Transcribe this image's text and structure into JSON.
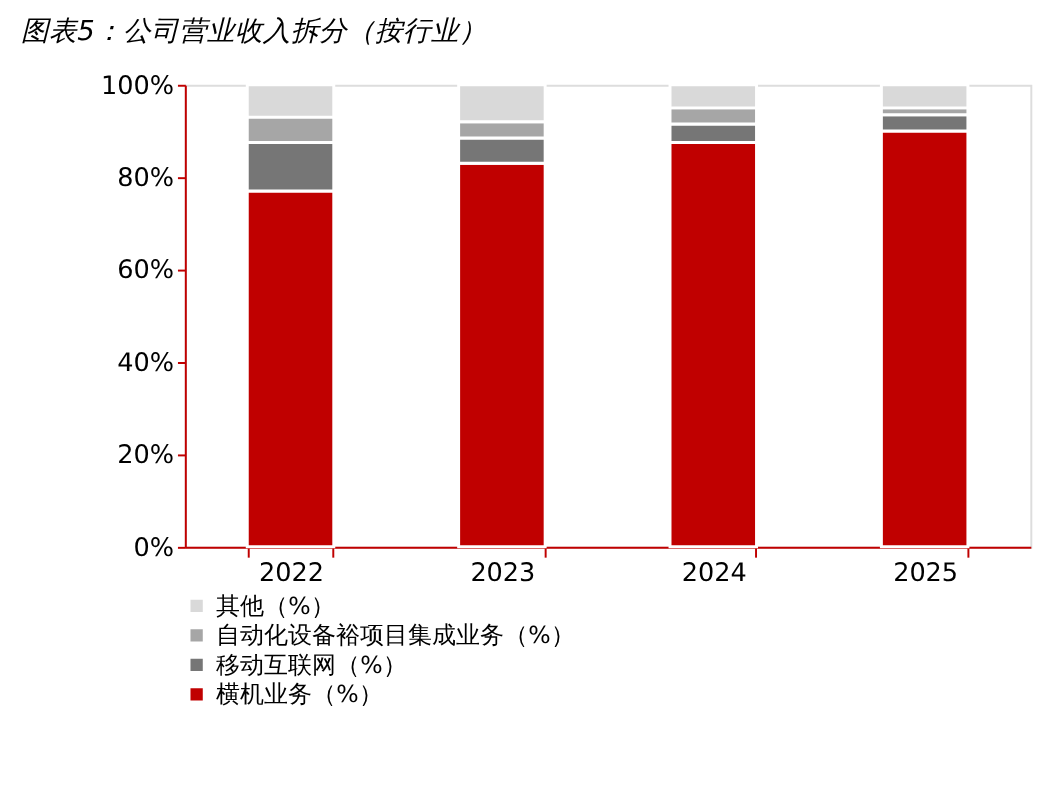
{
  "chart_data": {
    "type": "bar",
    "title": "图表5：公司营业收入拆分（按行业）",
    "stacked": true,
    "categories": [
      "2022",
      "2023",
      "2024",
      "2025"
    ],
    "series": [
      {
        "name": "横机业务（%）",
        "color": "#c00000",
        "values": [
          77,
          83,
          87.5,
          90
        ]
      },
      {
        "name": "移动互联网（%）",
        "color": "#767676",
        "values": [
          10.5,
          5.5,
          4,
          3.5
        ]
      },
      {
        "name": "自动化设备裕项目集成业务（%）",
        "color": "#a6a6a6",
        "values": [
          5.5,
          3.5,
          3.5,
          1.5
        ]
      },
      {
        "name": "其他（%）",
        "color": "#d9d9d9",
        "values": [
          7,
          8,
          5,
          5
        ]
      }
    ],
    "ylim": [
      0,
      100
    ],
    "yticks": [
      {
        "value": 0,
        "label": "0%"
      },
      {
        "value": 20,
        "label": "20%"
      },
      {
        "value": 40,
        "label": "40%"
      },
      {
        "value": 60,
        "label": "60%"
      },
      {
        "value": 80,
        "label": "80%"
      },
      {
        "value": 100,
        "label": "100%"
      }
    ],
    "grid": false,
    "legend": "bottom"
  }
}
